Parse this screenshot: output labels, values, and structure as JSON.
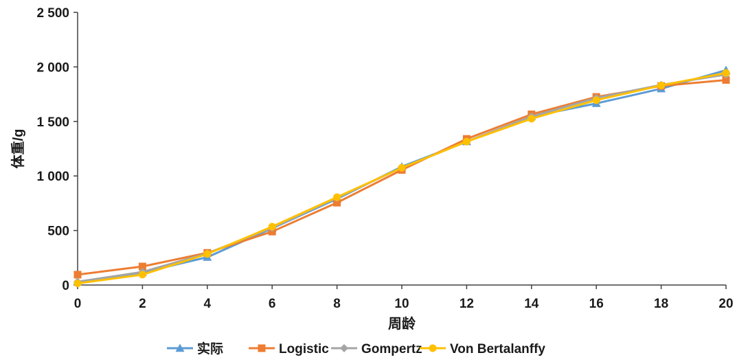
{
  "chart_data": {
    "type": "line",
    "title": "",
    "xlabel": "周龄",
    "ylabel": "体重/g",
    "x": [
      0,
      2,
      4,
      6,
      8,
      10,
      12,
      14,
      16,
      18,
      20
    ],
    "xlim": [
      0,
      20
    ],
    "ylim": [
      0,
      2500
    ],
    "x_ticks": [
      "0",
      "2",
      "4",
      "6",
      "8",
      "10",
      "12",
      "14",
      "16",
      "18",
      "20"
    ],
    "y_ticks": [
      {
        "value": 0,
        "label": "0"
      },
      {
        "value": 500,
        "label": "500"
      },
      {
        "value": 1000,
        "label": "1 000"
      },
      {
        "value": 1500,
        "label": "1 500"
      },
      {
        "value": 2000,
        "label": "2 000"
      },
      {
        "value": 2500,
        "label": "2 500"
      }
    ],
    "grid": false,
    "legend_position": "bottom",
    "series": [
      {
        "name": "实际",
        "color": "#5b9bd5",
        "marker": "triangle",
        "values": [
          30,
          115,
          255,
          520,
          790,
          1085,
          1315,
          1545,
          1665,
          1800,
          1970
        ]
      },
      {
        "name": "Logistic",
        "color": "#ed7d31",
        "marker": "square",
        "values": [
          95,
          170,
          295,
          490,
          755,
          1055,
          1340,
          1565,
          1725,
          1825,
          1880
        ]
      },
      {
        "name": "Gompertz",
        "color": "#a5a5a5",
        "marker": "diamond",
        "values": [
          30,
          120,
          290,
          525,
          800,
          1075,
          1315,
          1545,
          1715,
          1835,
          1930
        ]
      },
      {
        "name": "Von Bertalanffy",
        "color": "#ffc000",
        "marker": "circle",
        "values": [
          15,
          95,
          285,
          535,
          805,
          1075,
          1315,
          1525,
          1695,
          1830,
          1945
        ]
      }
    ]
  }
}
